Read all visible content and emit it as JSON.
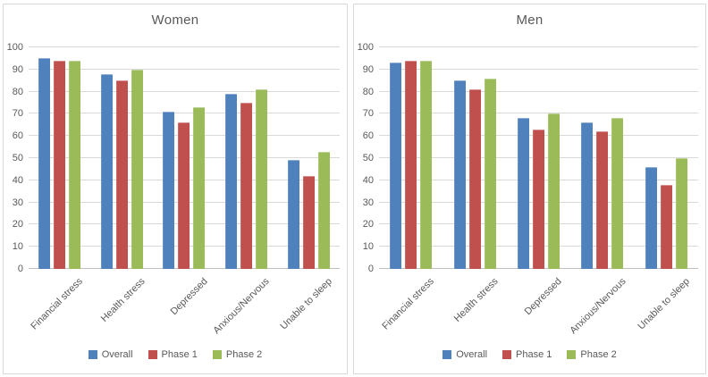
{
  "styles": {
    "accent_blue": "#4F81BD",
    "accent_red": "#C0504D",
    "accent_green": "#9BBB59",
    "grid_color": "#D9D9D9",
    "axis_color": "#BFBFBF",
    "text_color": "#595959",
    "panel_border": "#D9D9D9",
    "background": "#FFFFFF"
  },
  "chart_data": [
    {
      "type": "bar",
      "title": "Women",
      "categories": [
        "Financial stress",
        "Health stress",
        "Depressed",
        "Anxious/Nervous",
        "Unable to sleep"
      ],
      "series": [
        {
          "name": "Overall",
          "color": "#4F81BD",
          "values": [
            95,
            88,
            71,
            79,
            49
          ]
        },
        {
          "name": "Phase 1",
          "color": "#C0504D",
          "values": [
            94,
            85,
            66,
            75,
            42
          ]
        },
        {
          "name": "Phase 2",
          "color": "#9BBB59",
          "values": [
            94,
            90,
            73,
            81,
            53
          ]
        }
      ],
      "ylim": [
        0,
        100
      ],
      "yticks": [
        0,
        10,
        20,
        30,
        40,
        50,
        60,
        70,
        80,
        90,
        100
      ],
      "grid": true,
      "legend_position": "bottom"
    },
    {
      "type": "bar",
      "title": "Men",
      "categories": [
        "Financial stress",
        "Health stress",
        "Depressed",
        "Anxious/Nervous",
        "Unable to sleep"
      ],
      "series": [
        {
          "name": "Overall",
          "color": "#4F81BD",
          "values": [
            93,
            85,
            68,
            66,
            46
          ]
        },
        {
          "name": "Phase 1",
          "color": "#C0504D",
          "values": [
            94,
            81,
            63,
            62,
            38
          ]
        },
        {
          "name": "Phase 2",
          "color": "#9BBB59",
          "values": [
            94,
            86,
            70,
            68,
            50
          ]
        }
      ],
      "ylim": [
        0,
        100
      ],
      "yticks": [
        0,
        10,
        20,
        30,
        40,
        50,
        60,
        70,
        80,
        90,
        100
      ],
      "grid": true,
      "legend_position": "bottom"
    }
  ]
}
